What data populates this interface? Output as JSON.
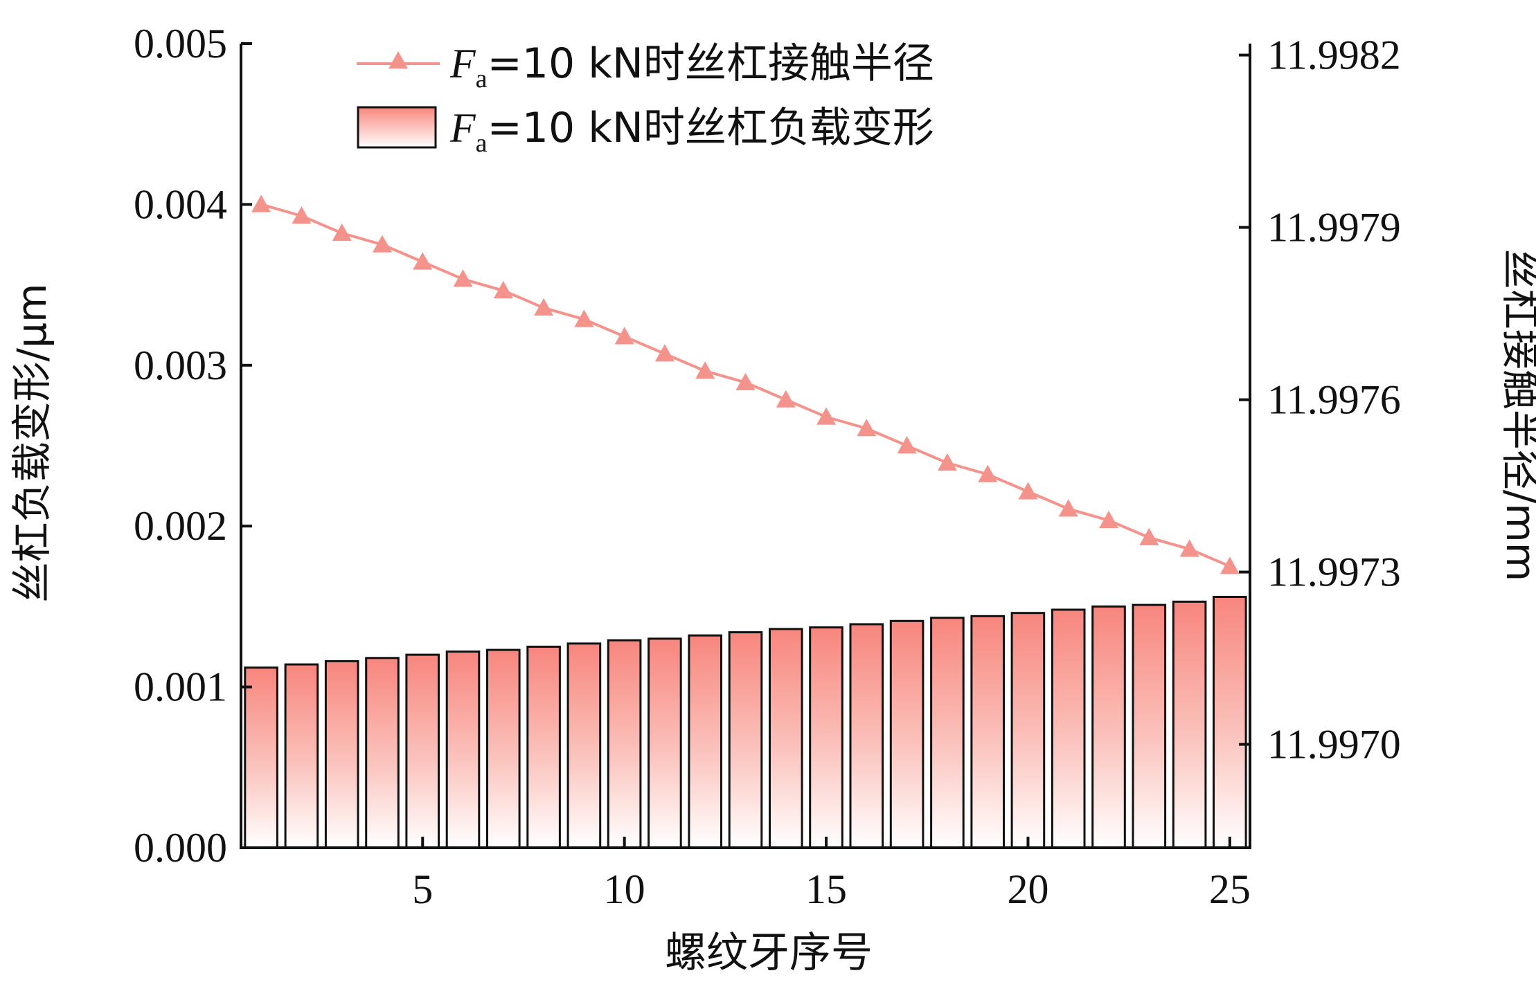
{
  "chart_data": {
    "type": "bar+line",
    "title": "",
    "xlabel": "螺纹牙序号",
    "ylabel_left": "丝杠负载变形/μm",
    "ylabel_right": "丝杠接触半径/mm",
    "x": [
      1,
      2,
      3,
      4,
      5,
      6,
      7,
      8,
      9,
      10,
      11,
      12,
      13,
      14,
      15,
      16,
      17,
      18,
      19,
      20,
      21,
      22,
      23,
      24,
      25
    ],
    "xlim": [
      0.5,
      25.5
    ],
    "xticks": [
      "5",
      "10",
      "15",
      "20",
      "25"
    ],
    "xtick_values": [
      5,
      10,
      15,
      20,
      25
    ],
    "ylim_left": [
      0,
      0.005
    ],
    "yticks_left": [
      "0.000",
      "0.001",
      "0.002",
      "0.003",
      "0.004",
      "0.005"
    ],
    "ytick_values_left": [
      0,
      0.001,
      0.002,
      0.003,
      0.004,
      0.005
    ],
    "ylim_right": [
      11.99682,
      11.99822
    ],
    "yticks_right": [
      "11.9970",
      "11.9973",
      "11.9976",
      "11.9979",
      "11.9982"
    ],
    "ytick_values_right": [
      11.997,
      11.9973,
      11.9976,
      11.9979,
      11.9982
    ],
    "legend_position": "top",
    "colors": {
      "bar_top": "#f7867d",
      "bar_bottom": "#ffffff",
      "bar_stroke": "#111111",
      "line": "#f4938b",
      "axis": "#111111"
    },
    "series": [
      {
        "name_prefix": "F",
        "name_sub": "a",
        "name_suffix": "=10 kN时丝杠接触半径",
        "type": "line",
        "axis": "right",
        "marker": "triangle",
        "values": [
          11.99794,
          11.99792,
          11.99789,
          11.99787,
          11.99784,
          11.99781,
          11.99779,
          11.99776,
          11.99774,
          11.99771,
          11.99768,
          11.99765,
          11.99763,
          11.9976,
          11.99757,
          11.99755,
          11.99752,
          11.99749,
          11.99747,
          11.99744,
          11.99741,
          11.99739,
          11.99736,
          11.99734,
          11.99731
        ]
      },
      {
        "name_prefix": "F",
        "name_sub": "a",
        "name_suffix": "=10 kN时丝杠负载变形",
        "type": "bar",
        "axis": "left",
        "values": [
          0.00112,
          0.00114,
          0.00116,
          0.00118,
          0.0012,
          0.00122,
          0.00123,
          0.00125,
          0.00127,
          0.00129,
          0.0013,
          0.00132,
          0.00134,
          0.00136,
          0.00137,
          0.00139,
          0.00141,
          0.00143,
          0.00144,
          0.00146,
          0.00148,
          0.0015,
          0.00151,
          0.00153,
          0.00156
        ]
      }
    ]
  }
}
